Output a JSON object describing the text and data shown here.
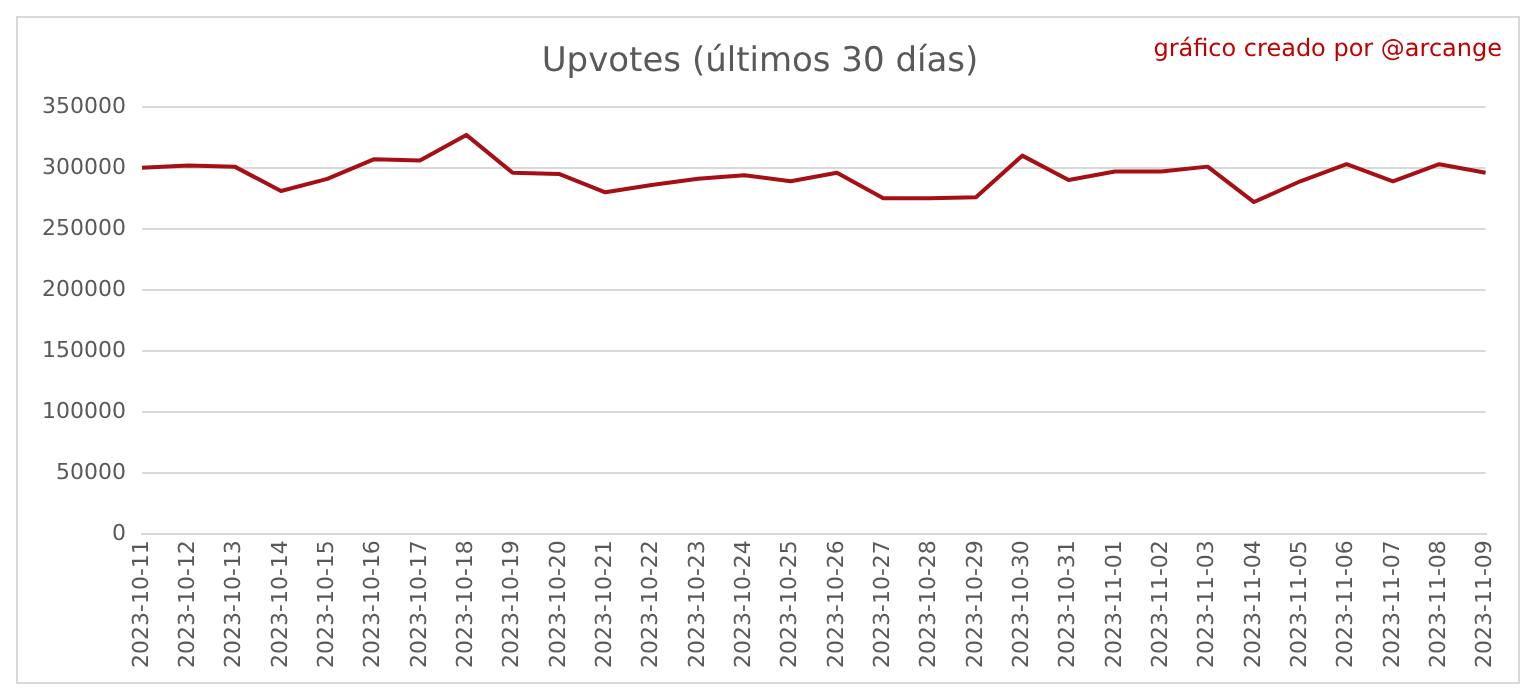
{
  "chart_data": {
    "type": "line",
    "title": "Upvotes (últimos 30 días)",
    "annotations": [
      "gráfico creado por @arcange"
    ],
    "categories": [
      "2023-10-11",
      "2023-10-12",
      "2023-10-13",
      "2023-10-14",
      "2023-10-15",
      "2023-10-16",
      "2023-10-17",
      "2023-10-18",
      "2023-10-19",
      "2023-10-20",
      "2023-10-21",
      "2023-10-22",
      "2023-10-23",
      "2023-10-24",
      "2023-10-25",
      "2023-10-26",
      "2023-10-27",
      "2023-10-28",
      "2023-10-29",
      "2023-10-30",
      "2023-10-31",
      "2023-11-01",
      "2023-11-02",
      "2023-11-03",
      "2023-11-04",
      "2023-11-05",
      "2023-11-06",
      "2023-11-07",
      "2023-11-08",
      "2023-11-09"
    ],
    "series": [
      {
        "color": "#a50f15",
        "values": [
          300000,
          302000,
          301000,
          281000,
          291000,
          307000,
          306000,
          327000,
          296000,
          295000,
          280000,
          286000,
          291000,
          294000,
          289000,
          296000,
          275000,
          275000,
          276000,
          310000,
          290000,
          297000,
          297000,
          301000,
          272000,
          289000,
          303000,
          289000,
          303000,
          296000
        ]
      }
    ],
    "ylim": [
      0,
      350000
    ],
    "yticks": [
      0,
      50000,
      100000,
      150000,
      200000,
      250000,
      300000,
      350000
    ],
    "grid": "y",
    "legend": false,
    "marker": "none",
    "line_style": "solid"
  }
}
